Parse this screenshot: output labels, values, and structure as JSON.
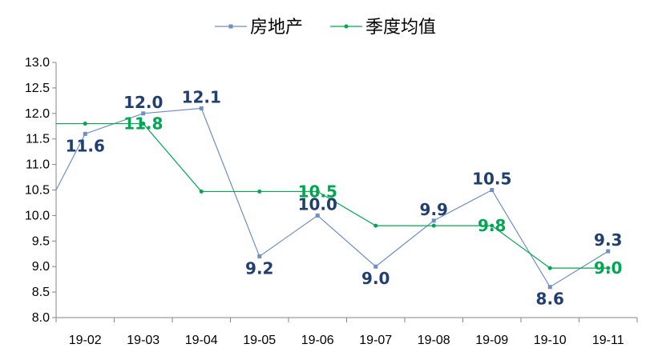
{
  "chart_data": {
    "type": "line",
    "categories": [
      "19-02",
      "19-03",
      "19-04",
      "19-05",
      "19-06",
      "19-07",
      "19-08",
      "19-09",
      "19-10",
      "19-11"
    ],
    "ylim": [
      8.0,
      13.0
    ],
    "yticks": [
      "8.0",
      "8.5",
      "9.0",
      "9.5",
      "10.0",
      "10.5",
      "11.0",
      "11.5",
      "12.0",
      "12.5",
      "13.0"
    ],
    "grid": false,
    "legend_position": "top",
    "series": [
      {
        "name": "房地产",
        "color": "#6f8fbf",
        "label_color": "#1f3f6f",
        "marker": "square",
        "lead_in_value": 10.5,
        "values": [
          11.6,
          12.0,
          12.1,
          9.2,
          10.0,
          9.0,
          9.9,
          10.5,
          8.6,
          9.3
        ],
        "labels": [
          "11.6",
          "12.0",
          "12.1",
          "9.2",
          "10.0",
          "9.0",
          "9.9",
          "10.5",
          "8.6",
          "9.3"
        ]
      },
      {
        "name": "季度均值",
        "color": "#00a651",
        "label_color": "#00a651",
        "marker": "circle",
        "lead_in_value": 11.8,
        "values": [
          11.8,
          11.8,
          10.47,
          10.47,
          10.47,
          9.8,
          9.8,
          9.8,
          8.97,
          8.97
        ],
        "labels": [
          "",
          "11.8",
          "",
          "",
          "10.5",
          "",
          "",
          "9.8",
          "",
          "9.0"
        ]
      }
    ]
  }
}
